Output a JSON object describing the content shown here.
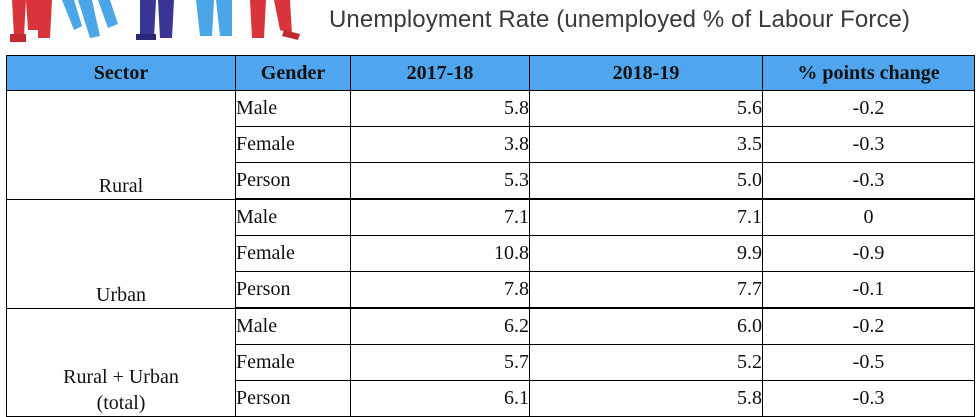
{
  "title": "Unemployment Rate (unemployed % of Labour Force)",
  "colors": {
    "header_bg": "#4fa6ee",
    "figure_red": "#d9333b",
    "figure_blue": "#4aa6e6",
    "figure_navy": "#3b3596"
  },
  "chart_data": {
    "type": "table",
    "columns": [
      "Sector",
      "Gender",
      "2017-18",
      "2018-19",
      "% points change"
    ],
    "groups": [
      {
        "sector": "Rural",
        "rows": [
          {
            "gender": "Male",
            "v2017": "5.8",
            "v2018": "5.6",
            "change": "-0.2"
          },
          {
            "gender": "Female",
            "v2017": "3.8",
            "v2018": "3.5",
            "change": "-0.3"
          },
          {
            "gender": "Person",
            "v2017": "5.3",
            "v2018": "5.0",
            "change": "-0.3"
          }
        ]
      },
      {
        "sector": "Urban",
        "rows": [
          {
            "gender": "Male",
            "v2017": "7.1",
            "v2018": "7.1",
            "change": "0"
          },
          {
            "gender": "Female",
            "v2017": "10.8",
            "v2018": "9.9",
            "change": "-0.9"
          },
          {
            "gender": "Person",
            "v2017": "7.8",
            "v2018": "7.7",
            "change": "-0.1"
          }
        ]
      },
      {
        "sector": "Rural + Urban (total)",
        "sector_lines": [
          "Rural + Urban",
          "(total)"
        ],
        "rows": [
          {
            "gender": "Male",
            "v2017": "6.2",
            "v2018": "6.0",
            "change": "-0.2"
          },
          {
            "gender": "Female",
            "v2017": "5.7",
            "v2018": "5.2",
            "change": "-0.5"
          },
          {
            "gender": "Person",
            "v2017": "6.1",
            "v2018": "5.8",
            "change": "-0.3"
          }
        ]
      }
    ]
  }
}
